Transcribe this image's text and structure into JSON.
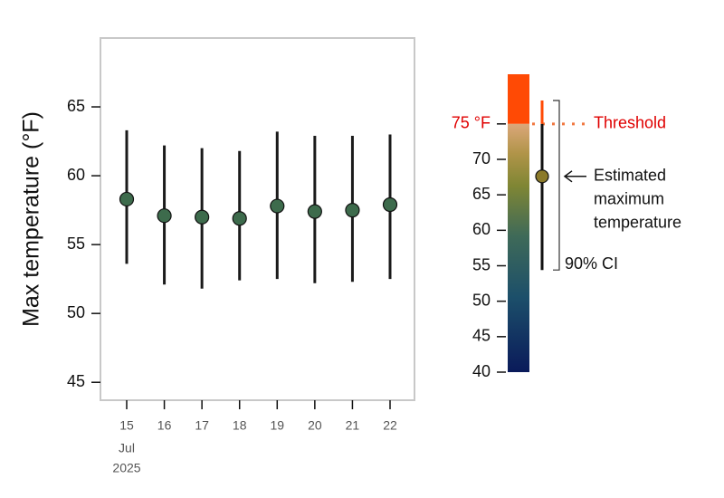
{
  "chart_data": {
    "type": "errorbar",
    "ylabel": "Max temperature (°F)",
    "categories": [
      "15",
      "16",
      "17",
      "18",
      "19",
      "20",
      "21",
      "22"
    ],
    "x_month": "Jul",
    "x_year": "2025",
    "values": [
      58.3,
      57.1,
      57.0,
      56.9,
      57.8,
      57.4,
      57.5,
      57.9
    ],
    "lower": [
      53.6,
      52.1,
      51.8,
      52.4,
      52.5,
      52.2,
      52.3,
      52.5
    ],
    "upper": [
      63.3,
      62.2,
      62.0,
      61.8,
      63.2,
      62.9,
      62.9,
      63.0
    ],
    "color": "#3d6b4c",
    "ylim": [
      43.7,
      70
    ],
    "yticks": [
      45,
      50,
      55,
      60,
      65
    ],
    "legend": {
      "lim": [
        40,
        82
      ],
      "ticks": [
        40,
        45,
        50,
        55,
        60,
        65,
        70
      ],
      "threshold": {
        "value": 75,
        "label": "75 °F"
      },
      "threshold_text": "Threshold",
      "example": {
        "value": 67.6,
        "lower": 54.4,
        "upper": 78.3,
        "color": "#8b7a2a"
      },
      "estimate_label": [
        "Estimated",
        "maximum",
        "temperature"
      ],
      "ci_label": "90% CI"
    }
  }
}
